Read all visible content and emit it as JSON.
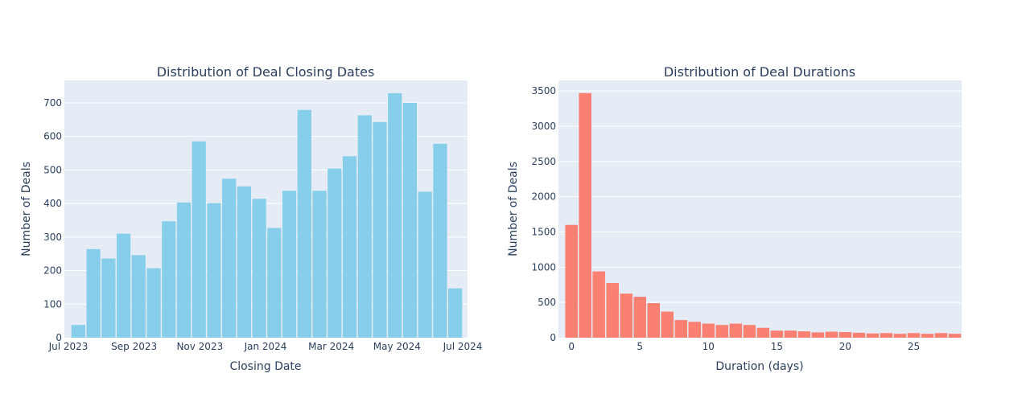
{
  "chart_data": [
    {
      "type": "bar",
      "title": "Distribution of Deal Closing Dates",
      "xlabel": "Closing Date",
      "ylabel": "Number of Deals",
      "bar_color": "#87ceeb",
      "x_tick_labels": [
        "Jul 2023",
        "Sep 2023",
        "Nov 2023",
        "Jan 2024",
        "Mar 2024",
        "May 2024",
        "Jul 2024"
      ],
      "y_ticks": [
        0,
        100,
        200,
        300,
        400,
        500,
        600,
        700
      ],
      "ylim": [
        0,
        767
      ],
      "values": [
        38,
        264,
        236,
        310,
        246,
        207,
        347,
        403,
        585,
        401,
        474,
        451,
        414,
        327,
        438,
        679,
        438,
        504,
        541,
        663,
        643,
        729,
        700,
        435,
        578,
        147
      ]
    },
    {
      "type": "bar",
      "title": "Distribution of Deal Durations",
      "xlabel": "Duration (days)",
      "ylabel": "Number of Deals",
      "bar_color": "#fa8072",
      "x": [
        0,
        1,
        2,
        3,
        4,
        5,
        6,
        7,
        8,
        9,
        10,
        11,
        12,
        13,
        14,
        15,
        16,
        17,
        18,
        19,
        20,
        21,
        22,
        23,
        24,
        25,
        26,
        27,
        28
      ],
      "x_ticks": [
        0,
        5,
        10,
        15,
        20,
        25
      ],
      "y_ticks": [
        0,
        500,
        1000,
        1500,
        2000,
        2500,
        3000,
        3500
      ],
      "xlim": [
        -0.95,
        28.5
      ],
      "ylim": [
        0,
        3650
      ],
      "values": [
        1600,
        3470,
        940,
        775,
        625,
        580,
        490,
        370,
        250,
        225,
        200,
        180,
        200,
        180,
        140,
        100,
        100,
        90,
        75,
        85,
        80,
        70,
        60,
        65,
        55,
        65,
        55,
        65,
        55
      ]
    }
  ]
}
